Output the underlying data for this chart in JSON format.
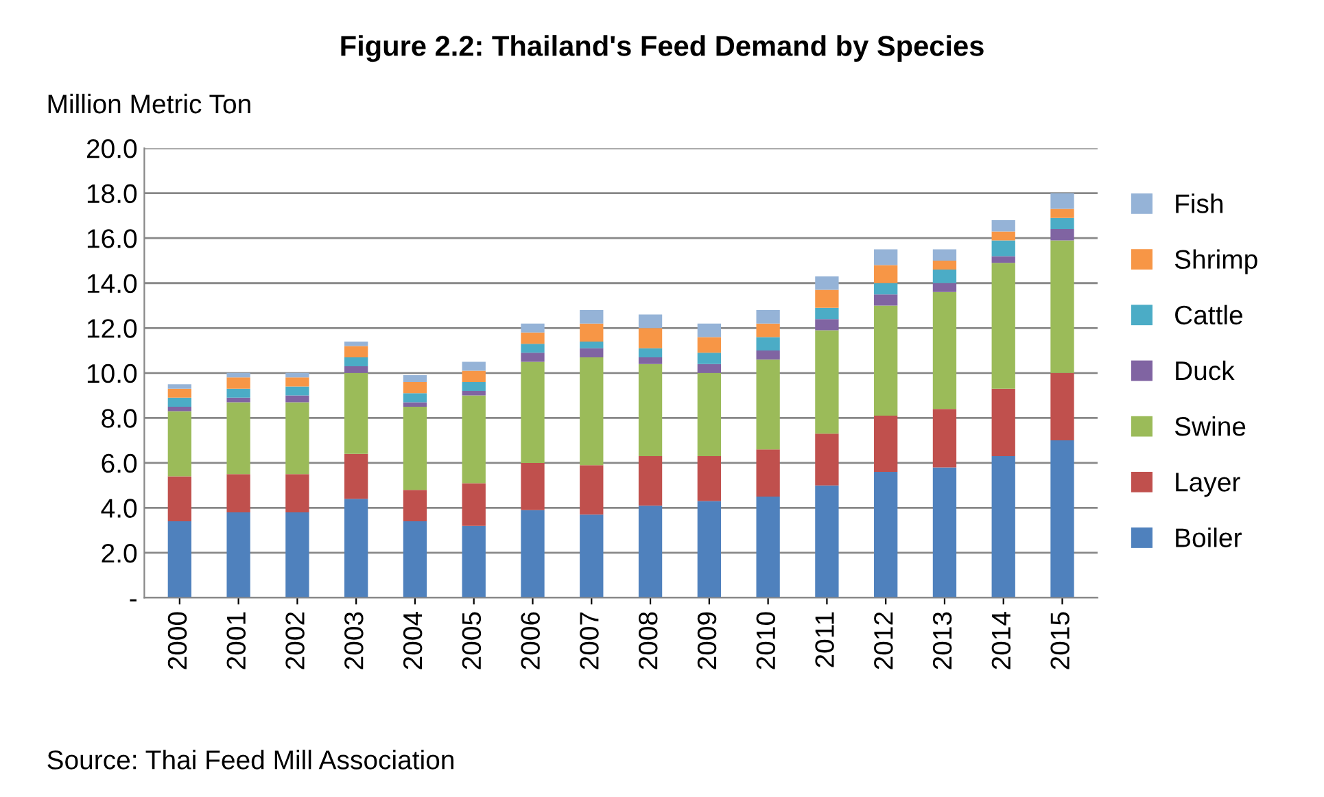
{
  "chart_data": {
    "type": "bar",
    "stacked": true,
    "title": "Figure 2.2: Thailand's Feed Demand by Species",
    "ylabel": "Million Metric Ton",
    "categories": [
      "2000",
      "2001",
      "2002",
      "2003",
      "2004",
      "2005",
      "2006",
      "2007",
      "2008",
      "2009",
      "2010",
      "2011",
      "2012",
      "2013",
      "2014",
      "2015"
    ],
    "series": [
      {
        "name": "Boiler",
        "color": "#4f81bd",
        "values": [
          3.4,
          3.8,
          3.8,
          4.4,
          3.4,
          3.2,
          3.9,
          3.7,
          4.1,
          4.3,
          4.5,
          5.0,
          5.6,
          5.8,
          6.3,
          7.0
        ]
      },
      {
        "name": "Layer",
        "color": "#c0504d",
        "values": [
          2.0,
          1.7,
          1.7,
          2.0,
          1.4,
          1.9,
          2.1,
          2.2,
          2.2,
          2.0,
          2.1,
          2.3,
          2.5,
          2.6,
          3.0,
          3.0
        ]
      },
      {
        "name": "Swine",
        "color": "#9bbb59",
        "values": [
          2.9,
          3.2,
          3.2,
          3.6,
          3.7,
          3.9,
          4.5,
          4.8,
          4.1,
          3.7,
          4.0,
          4.6,
          4.9,
          5.2,
          5.6,
          5.9
        ]
      },
      {
        "name": "Duck",
        "color": "#8064a2",
        "values": [
          0.2,
          0.2,
          0.3,
          0.3,
          0.2,
          0.2,
          0.4,
          0.4,
          0.3,
          0.4,
          0.4,
          0.5,
          0.5,
          0.4,
          0.3,
          0.5
        ]
      },
      {
        "name": "Cattle",
        "color": "#4bacc6",
        "values": [
          0.4,
          0.4,
          0.4,
          0.4,
          0.4,
          0.4,
          0.4,
          0.3,
          0.4,
          0.5,
          0.6,
          0.5,
          0.5,
          0.6,
          0.7,
          0.5
        ]
      },
      {
        "name": "Shrimp",
        "color": "#f79646",
        "values": [
          0.4,
          0.5,
          0.4,
          0.5,
          0.5,
          0.5,
          0.5,
          0.8,
          0.9,
          0.7,
          0.6,
          0.8,
          0.8,
          0.4,
          0.4,
          0.4
        ]
      },
      {
        "name": "Fish",
        "color": "#95b3d7",
        "values": [
          0.2,
          0.2,
          0.2,
          0.2,
          0.3,
          0.4,
          0.4,
          0.6,
          0.6,
          0.6,
          0.6,
          0.6,
          0.7,
          0.5,
          0.5,
          0.7
        ]
      }
    ],
    "ylim": [
      0,
      20
    ],
    "yticks": [
      {
        "value": 0,
        "label": "-"
      },
      {
        "value": 2,
        "label": "2.0"
      },
      {
        "value": 4,
        "label": "4.0"
      },
      {
        "value": 6,
        "label": "6.0"
      },
      {
        "value": 8,
        "label": "8.0"
      },
      {
        "value": 10,
        "label": "10.0"
      },
      {
        "value": 12,
        "label": "12.0"
      },
      {
        "value": 14,
        "label": "14.0"
      },
      {
        "value": 16,
        "label": "16.0"
      },
      {
        "value": 18,
        "label": "18.0"
      },
      {
        "value": 20,
        "label": "20.0"
      }
    ],
    "grid": "y",
    "legend": "right",
    "annotations": [
      "Source: Thai Feed Mill Association"
    ]
  }
}
